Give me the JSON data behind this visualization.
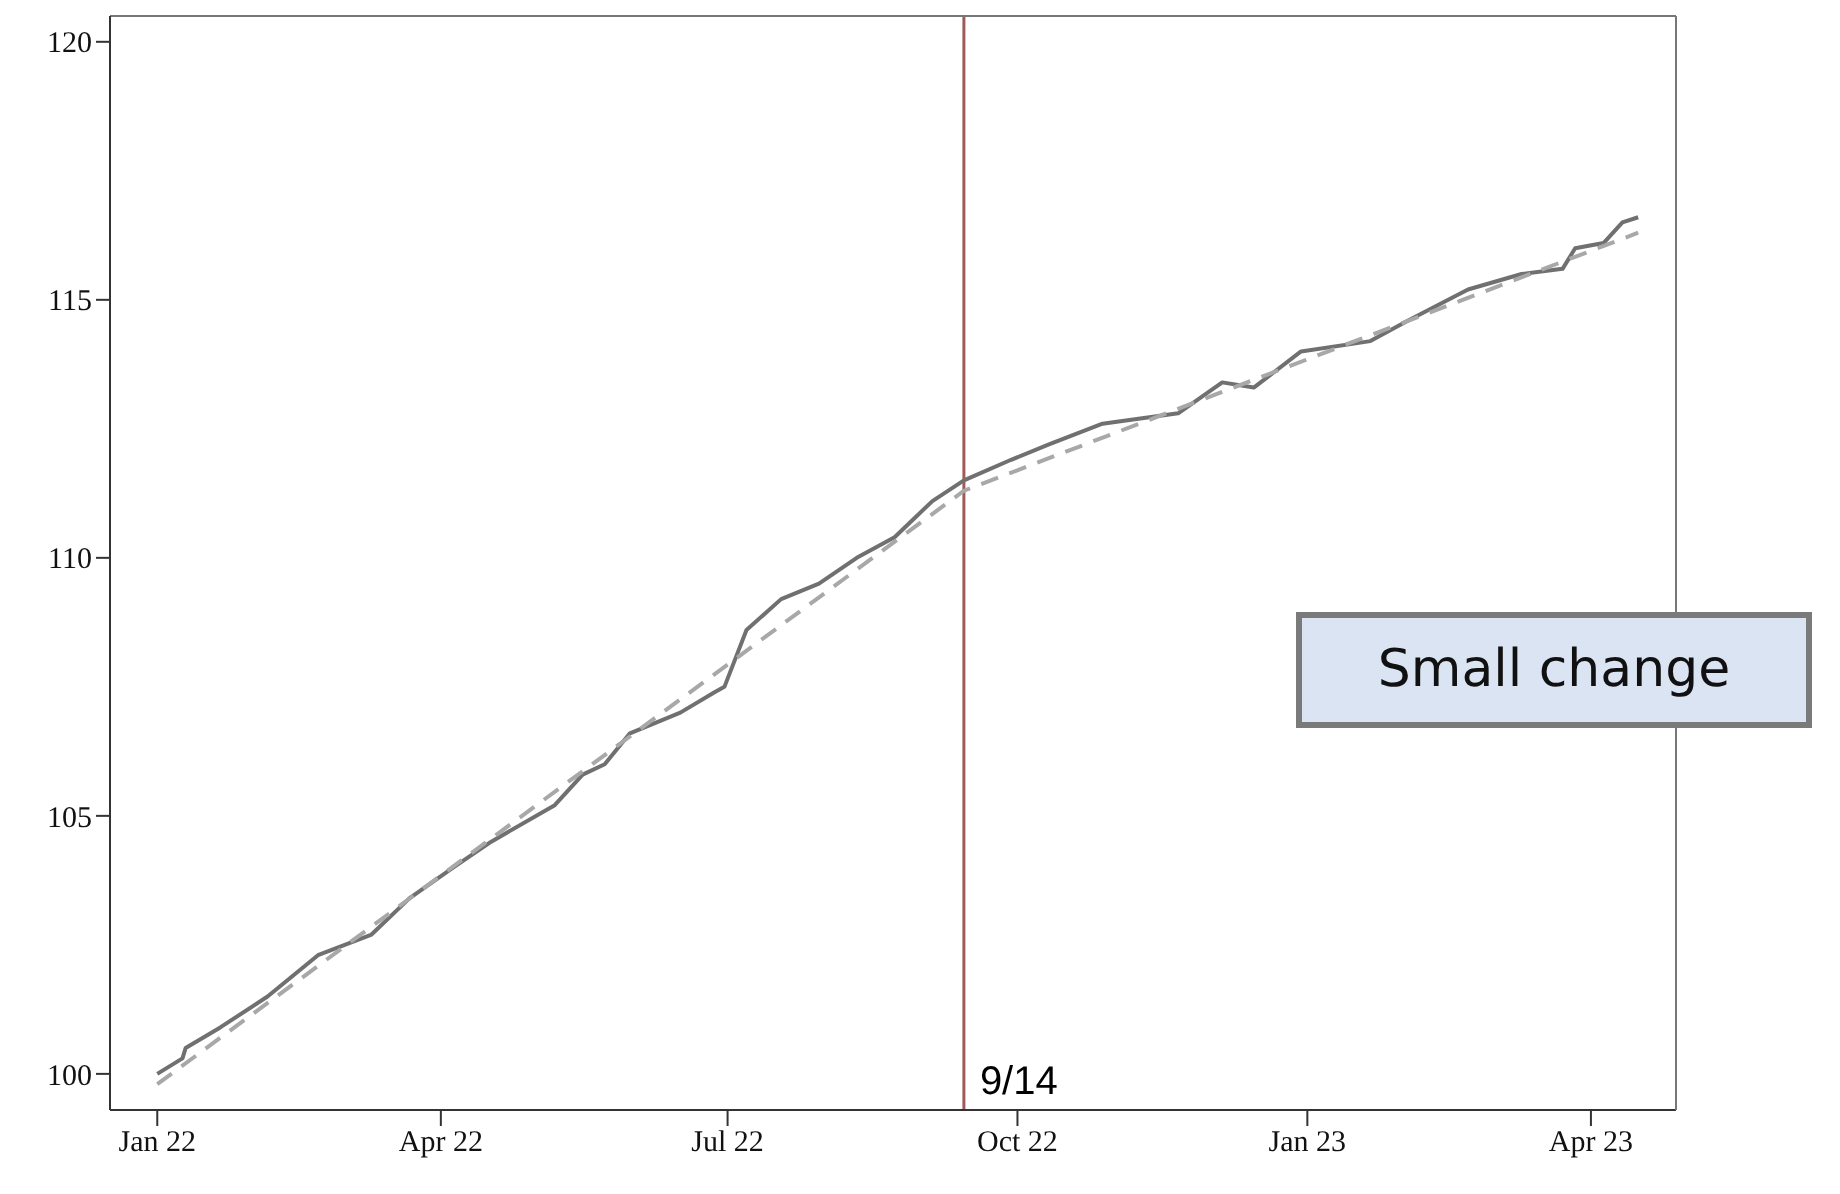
{
  "chart_data": {
    "type": "line",
    "marker": "none",
    "grid": false,
    "legend": false,
    "xlim": [
      "2021-12-17",
      "2023-04-28"
    ],
    "xticks": [
      {
        "value": "2022-01-01",
        "label": "Jan 22"
      },
      {
        "value": "2022-04-01",
        "label": "Apr 22"
      },
      {
        "value": "2022-07-01",
        "label": "Jul 22"
      },
      {
        "value": "2022-10-01",
        "label": "Oct 22"
      },
      {
        "value": "2023-01-01",
        "label": "Jan 23"
      },
      {
        "value": "2023-04-01",
        "label": "Apr 23"
      }
    ],
    "ylim": [
      99.3,
      120.5
    ],
    "yticks": [
      100,
      105,
      110,
      115,
      120
    ],
    "series": [
      {
        "color": "#707070",
        "line_style": "solid",
        "x": [
          "2022-01-01",
          "2022-01-09",
          "2022-01-10",
          "2022-01-21",
          "2022-02-05",
          "2022-02-21",
          "2022-03-10",
          "2022-03-22",
          "2022-04-05",
          "2022-04-17",
          "2022-05-07",
          "2022-05-16",
          "2022-05-23",
          "2022-05-31",
          "2022-06-16",
          "2022-06-27",
          "2022-06-30",
          "2022-07-07",
          "2022-07-18",
          "2022-07-30",
          "2022-08-11",
          "2022-08-23",
          "2022-09-04",
          "2022-09-14",
          "2022-09-29",
          "2022-10-11",
          "2022-10-28",
          "2022-11-09",
          "2022-11-21",
          "2022-12-05",
          "2022-12-15",
          "2022-12-30",
          "2023-01-21",
          "2023-02-02",
          "2023-02-21",
          "2023-03-10",
          "2023-03-23",
          "2023-03-27",
          "2023-04-05",
          "2023-04-11",
          "2023-04-16"
        ],
        "values": [
          100.0,
          100.3,
          100.5,
          100.9,
          101.5,
          102.3,
          102.7,
          103.4,
          104.0,
          104.5,
          105.2,
          105.8,
          106.0,
          106.6,
          107.0,
          107.4,
          107.5,
          108.6,
          109.2,
          109.5,
          110.0,
          110.4,
          111.1,
          111.5,
          111.9,
          112.2,
          112.6,
          112.7,
          112.8,
          113.4,
          113.3,
          114.0,
          114.2,
          114.6,
          115.2,
          115.5,
          115.6,
          116.0,
          116.1,
          116.5,
          116.6
        ]
      },
      {
        "color": "#a8a8a8",
        "line_style": "dashed",
        "x": [
          "2022-01-01",
          "2022-09-14",
          "2023-04-16"
        ],
        "values": [
          99.8,
          111.3,
          116.3
        ]
      }
    ],
    "ref_lines": [
      {
        "axis": "x",
        "value": "2022-09-14",
        "label": "9/14",
        "color": "#a05a5a"
      }
    ],
    "annotations": [
      "Small change"
    ]
  }
}
